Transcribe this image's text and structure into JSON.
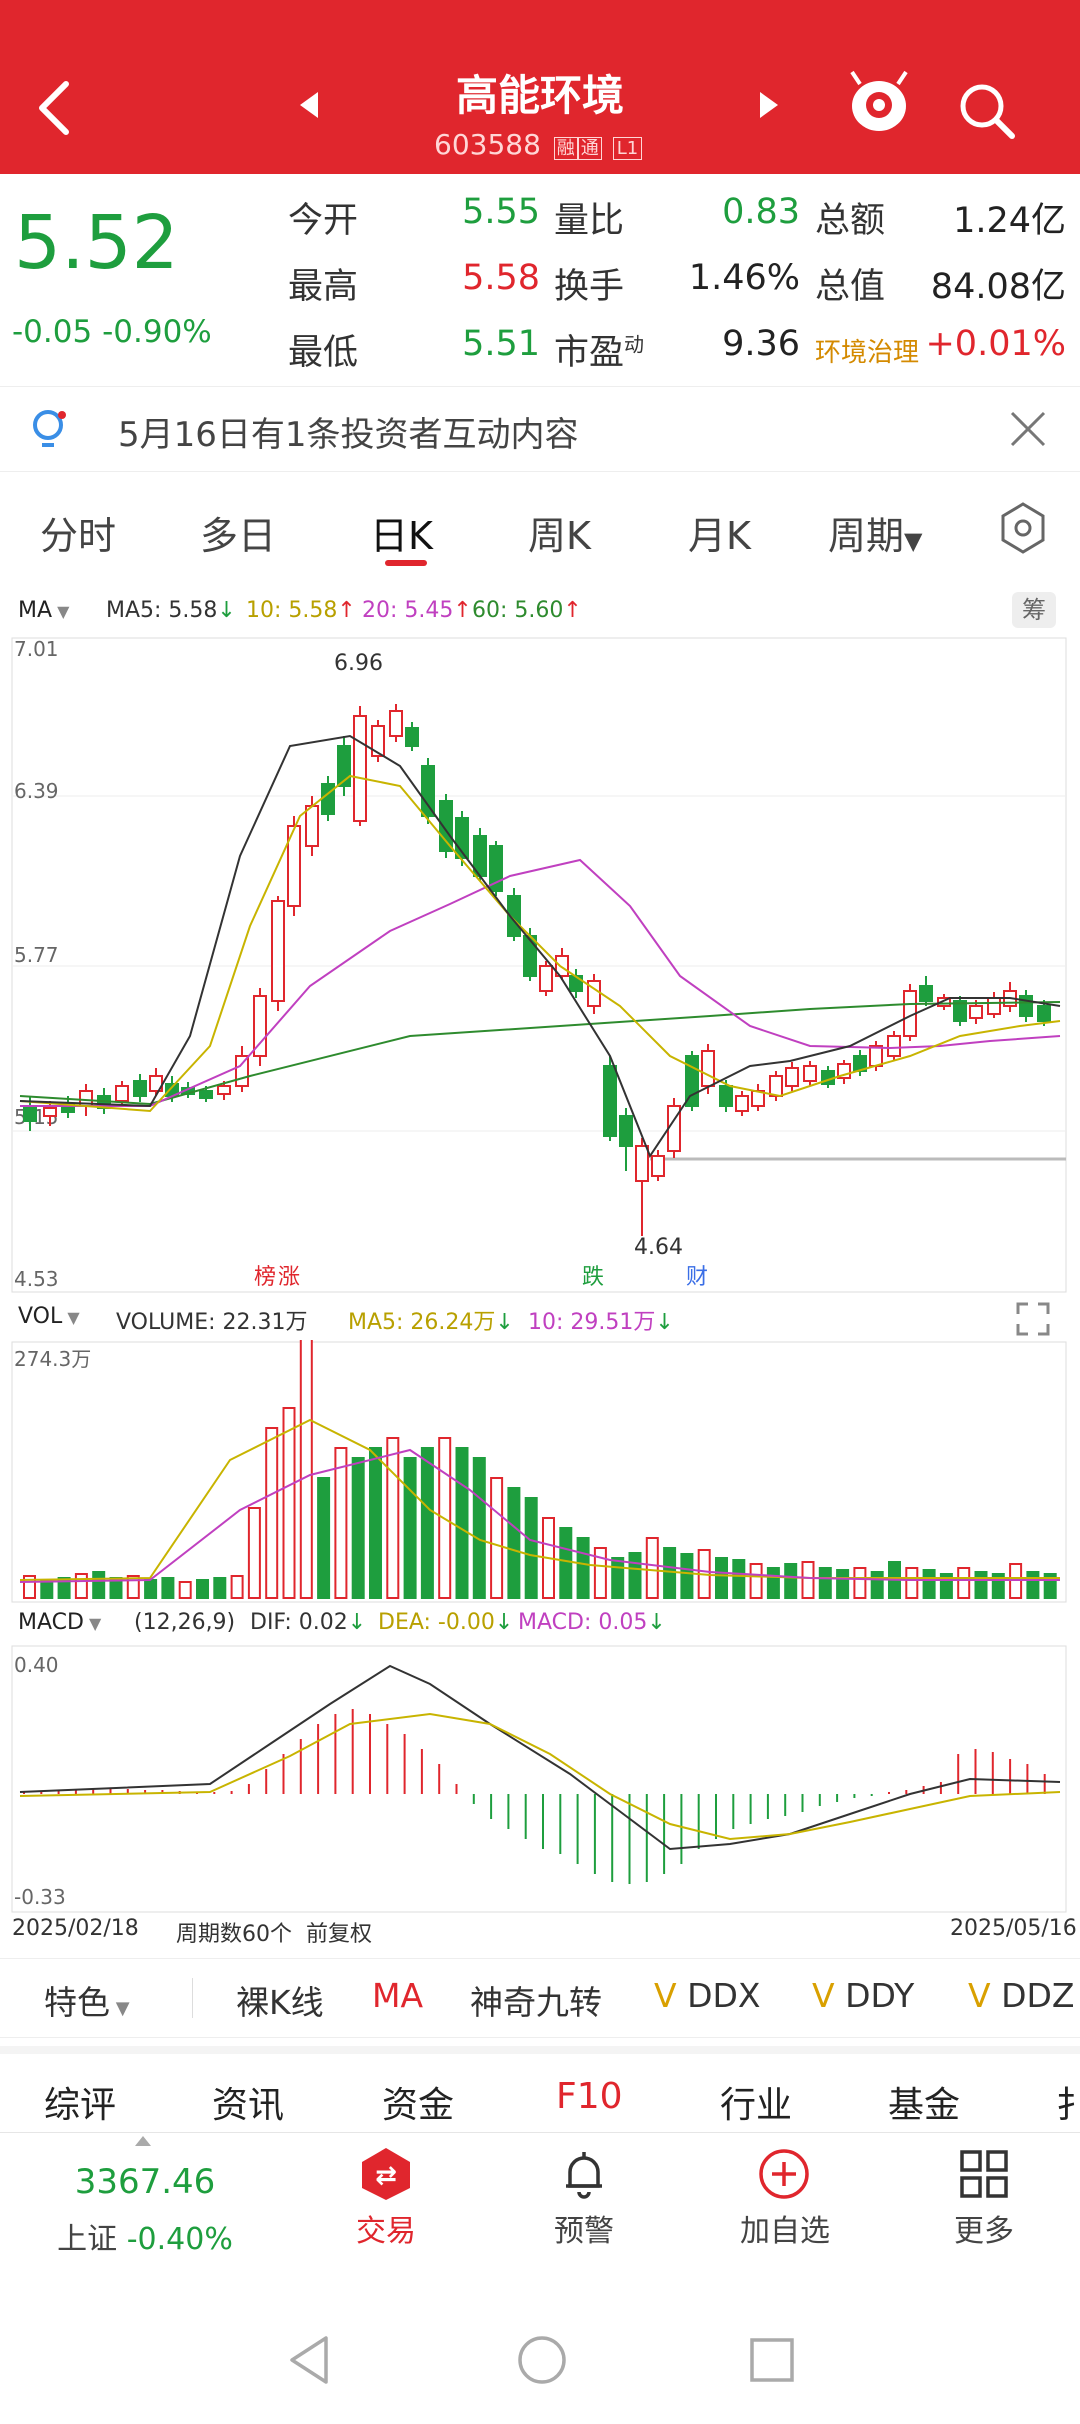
{
  "header": {
    "title": "高能环境",
    "code": "603588",
    "badge1": "融",
    "badge2": "通",
    "badge3": "L1"
  },
  "quote": {
    "price": "5.52",
    "change": "-0.05",
    "change_pct": "-0.90%",
    "rows": [
      {
        "l1": "今开",
        "v1": "5.55",
        "l2": "量比",
        "v2": "0.83",
        "l3": "总额",
        "v3": "1.24亿"
      },
      {
        "l1": "最高",
        "v1": "5.58",
        "l2": "换手",
        "v2": "1.46%",
        "l3": "总值",
        "v3": "84.08亿"
      },
      {
        "l1": "最低",
        "v1": "5.51",
        "l2": "市盈",
        "sup": "动",
        "v2": "9.36",
        "l3": "环境治理",
        "v3": "+0.01%"
      }
    ]
  },
  "notice": {
    "text": "5月16日有1条投资者互动内容"
  },
  "tabs": {
    "t1": "分时",
    "t2": "多日",
    "t3": "日K",
    "t4": "周K",
    "t5": "月K",
    "t6": "周期"
  },
  "ma_legend": {
    "sel": "MA",
    "ma5": "MA5: 5.58",
    "ma10": "10: 5.58",
    "ma20": "20: 5.45",
    "ma60": "60: 5.60",
    "chou": "筹"
  },
  "ytick": {
    "a": "7.01",
    "b": "6.39",
    "c": "5.77",
    "d": "5.15",
    "e": "4.53"
  },
  "marks": {
    "high": "6.96",
    "low": "4.64",
    "bang": "榜",
    "zhang": "涨",
    "die": "跌",
    "cai": "财"
  },
  "vol_legend": {
    "sel": "VOL",
    "v": "VOLUME: 22.31万",
    "ma5": "MA5: 26.24万",
    "ma10": "10: 29.51万",
    "max": "274.3万"
  },
  "macd_legend": {
    "sel": "MACD",
    "params": "(12,26,9)",
    "dif": "DIF: 0.02",
    "dea": "DEA: -0.00",
    "macd": "MACD: 0.05",
    "top": "0.40",
    "bot": "-0.33"
  },
  "footer_axis": {
    "start": "2025/02/18",
    "periods": "周期数60个",
    "adj": "前复权",
    "end": "2025/05/16"
  },
  "toolbar": {
    "a": "特色",
    "b": "裸K线",
    "c": "MA",
    "d": "神奇九转",
    "e": "DDX",
    "f": "DDY",
    "g": "DDZ"
  },
  "subtabs": {
    "a": "综评",
    "b": "资讯",
    "c": "资金",
    "d": "F10",
    "e": "行业",
    "f": "基金",
    "g": "扌"
  },
  "bottom": {
    "idx_val": "3367.46",
    "idx_name": "上证",
    "idx_chg": "-0.40%",
    "trade": "交易",
    "alert": "预警",
    "add": "加自选",
    "more": "更多"
  },
  "colors": {
    "red": "#e0262d",
    "green": "#1e9e3e",
    "ma5": "#333333",
    "ma10": "#c8b400",
    "ma20": "#c040c0",
    "ma60": "#2e8b2e"
  }
}
